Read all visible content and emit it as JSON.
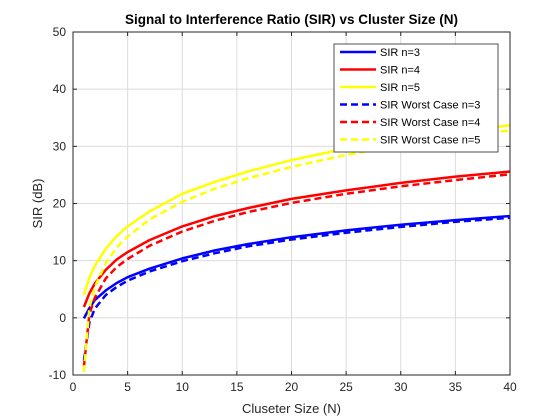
{
  "chart_data": {
    "type": "line",
    "title": "Signal to Interference Ratio (SIR) vs Cluster Size (N)",
    "xlabel": "Cluseter Size (N)",
    "ylabel": "SIR (dB)",
    "xlim": [
      0,
      40
    ],
    "ylim": [
      -10,
      50
    ],
    "xticks": [
      0,
      5,
      10,
      15,
      20,
      25,
      30,
      35,
      40
    ],
    "yticks": [
      -10,
      0,
      10,
      20,
      30,
      40,
      50
    ],
    "grid": true,
    "legend_position": "top-right",
    "x": [
      1,
      1.5,
      2,
      3,
      4,
      5,
      7,
      10,
      13,
      16,
      20,
      25,
      30,
      35,
      40
    ],
    "series": [
      {
        "name": "SIR n=3",
        "color": "#0000ff",
        "dash": "solid",
        "values": [
          -0.1,
          1.7,
          3.1,
          4.8,
          6.1,
          7.1,
          8.6,
          10.4,
          11.8,
          12.9,
          14.1,
          15.3,
          16.3,
          17.1,
          17.8
        ]
      },
      {
        "name": "SIR n=4",
        "color": "#ff0000",
        "dash": "solid",
        "values": [
          1.9,
          4.3,
          6.0,
          8.4,
          10.2,
          11.5,
          13.6,
          16.0,
          17.8,
          19.2,
          20.8,
          22.3,
          23.6,
          24.7,
          25.6
        ]
      },
      {
        "name": "SIR n=5",
        "color": "#ffff00",
        "dash": "solid",
        "values": [
          4.0,
          7.0,
          9.1,
          12.1,
          14.3,
          16.0,
          18.6,
          21.7,
          23.8,
          25.6,
          27.6,
          29.6,
          31.2,
          32.5,
          33.7
        ]
      },
      {
        "name": "SIR Worst Case n=3",
        "color": "#0000ff",
        "dash": "dashed",
        "values": [
          -7.5,
          -0.8,
          1.6,
          4.0,
          5.4,
          6.5,
          8.1,
          9.9,
          11.3,
          12.5,
          13.7,
          14.9,
          15.9,
          16.8,
          17.5
        ]
      },
      {
        "name": "SIR Worst Case n=4",
        "color": "#ff0000",
        "dash": "dashed",
        "values": [
          -8.5,
          0.6,
          3.5,
          6.9,
          8.9,
          10.3,
          12.6,
          15.1,
          17.0,
          18.5,
          20.1,
          21.7,
          23.0,
          24.1,
          25.1
        ]
      },
      {
        "name": "SIR Worst Case n=5",
        "color": "#ffff00",
        "dash": "dashed",
        "values": [
          -9.5,
          1.8,
          5.4,
          9.6,
          12.3,
          14.2,
          17.2,
          20.3,
          22.6,
          24.4,
          26.4,
          28.5,
          30.1,
          31.5,
          32.8
        ]
      }
    ]
  }
}
